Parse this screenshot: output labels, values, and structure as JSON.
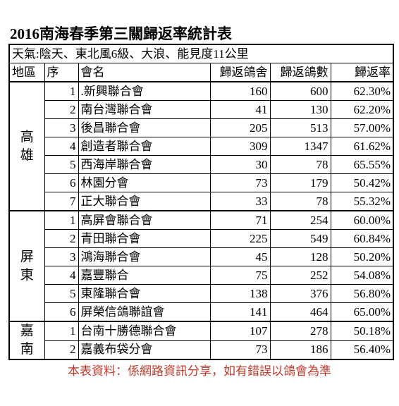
{
  "header": {
    "title": "2016南海春季第三關歸返率統計表"
  },
  "table": {
    "weather": "天氣:陰天、東北風6級、大浪、能見度11公里",
    "columns": [
      "地區",
      "序",
      "會名",
      "歸返鴿舍",
      "歸返鴿數",
      "歸返率"
    ],
    "groups": [
      {
        "region": "高雄",
        "rows": [
          [
            1,
            ".新興聯合會",
            160,
            600,
            "62.30%"
          ],
          [
            2,
            "南台灣聯合會",
            41,
            130,
            "62.20%"
          ],
          [
            3,
            "後昌聯合會",
            205,
            513,
            "57.00%"
          ],
          [
            4,
            "創造者聯合會",
            309,
            1347,
            "61.62%"
          ],
          [
            5,
            "西海岸聯合會",
            30,
            78,
            "65.55%"
          ],
          [
            6,
            "林園分會",
            73,
            179,
            "50.42%"
          ],
          [
            7,
            "正大聯合會",
            33,
            78,
            "55.32%"
          ]
        ]
      },
      {
        "region": "屏東",
        "rows": [
          [
            1,
            "高屏會聯合會",
            71,
            254,
            "60.00%"
          ],
          [
            2,
            "青田聯合會",
            225,
            549,
            "60.84%"
          ],
          [
            3,
            "鴻海聯合會",
            45,
            128,
            "50.20%"
          ],
          [
            4,
            "嘉豐聯合",
            75,
            252,
            "54.08%"
          ],
          [
            5,
            "東隆聯合會",
            138,
            376,
            "56.80%"
          ],
          [
            6,
            "屏榮信鴿聯誼會",
            141,
            464,
            "65.00%"
          ]
        ]
      },
      {
        "region": "嘉南",
        "rows": [
          [
            1,
            "台南十勝德聯合會",
            107,
            278,
            "50.18%"
          ],
          [
            2,
            "嘉義布袋分會",
            73,
            186,
            "56.40%"
          ]
        ]
      }
    ]
  },
  "footer": "本表資料：係網路資訊分享，如有錯誤以鴿會為準"
}
